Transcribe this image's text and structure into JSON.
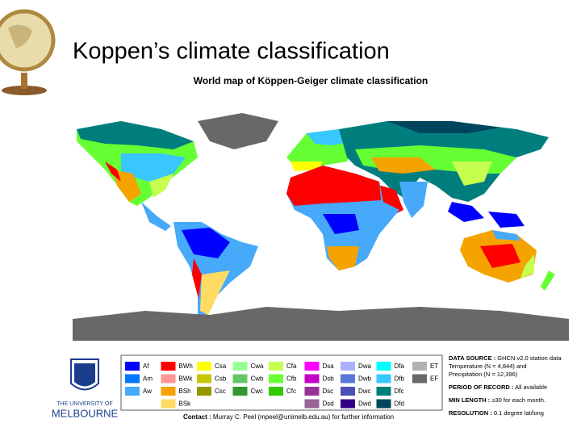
{
  "slide_title": "Koppen’s climate classification",
  "map": {
    "title": "World map of Köppen-Geiger climate classification",
    "legend": [
      [
        {
          "code": "Af",
          "color": "#0000fe"
        },
        {
          "code": "Am",
          "color": "#0077ff"
        },
        {
          "code": "Aw",
          "color": "#46a9fa"
        }
      ],
      [
        {
          "code": "BWh",
          "color": "#fe0000"
        },
        {
          "code": "BWk",
          "color": "#fe9695"
        },
        {
          "code": "BSh",
          "color": "#f5a301"
        },
        {
          "code": "BSk",
          "color": "#ffdb63"
        }
      ],
      [
        {
          "code": "Csa",
          "color": "#ffff00"
        },
        {
          "code": "Csb",
          "color": "#c6c700"
        },
        {
          "code": "Csc",
          "color": "#969600"
        }
      ],
      [
        {
          "code": "Cwa",
          "color": "#96ff96"
        },
        {
          "code": "Cwb",
          "color": "#63c764"
        },
        {
          "code": "Cwc",
          "color": "#329633"
        }
      ],
      [
        {
          "code": "Cfa",
          "color": "#c6ff4e"
        },
        {
          "code": "Cfb",
          "color": "#66ff33"
        },
        {
          "code": "Cfc",
          "color": "#33c701"
        }
      ],
      [
        {
          "code": "Dsa",
          "color": "#ff00fe"
        },
        {
          "code": "Dsb",
          "color": "#c600c7"
        },
        {
          "code": "Dsc",
          "color": "#963295"
        },
        {
          "code": "Dsd",
          "color": "#966495"
        }
      ],
      [
        {
          "code": "Dwa",
          "color": "#abb1ff"
        },
        {
          "code": "Dwb",
          "color": "#5a77db"
        },
        {
          "code": "Dwc",
          "color": "#4c51b5"
        },
        {
          "code": "Dwd",
          "color": "#320087"
        }
      ],
      [
        {
          "code": "Dfa",
          "color": "#00ffff"
        },
        {
          "code": "Dfb",
          "color": "#38c7ff"
        },
        {
          "code": "Dfc",
          "color": "#007e7d"
        },
        {
          "code": "Dfd",
          "color": "#00455e"
        }
      ],
      [
        {
          "code": "ET",
          "color": "#b2b2b2"
        },
        {
          "code": "EF",
          "color": "#686868"
        }
      ]
    ],
    "info": [
      {
        "label": "DATA SOURCE :",
        "lines": [
          "GHCN v2.0 station data",
          "Temperature (N = 4,844) and",
          "Precipitation (N = 12,396)"
        ]
      },
      {
        "label": "PERIOD OF RECORD :",
        "lines": [
          "All available"
        ]
      },
      {
        "label": "MIN LENGTH :",
        "lines": [
          "≥30 for each month."
        ]
      },
      {
        "label": "RESOLUTION :",
        "lines": [
          "0.1 degree lat/long"
        ]
      }
    ],
    "contact": {
      "label": "Contact :",
      "text": "Murray C. Peel (mpeel@unimelb.edu.au) for further information"
    },
    "logo": {
      "line1": "THE UNIVERSITY OF",
      "line2": "MELBOURNE"
    }
  }
}
